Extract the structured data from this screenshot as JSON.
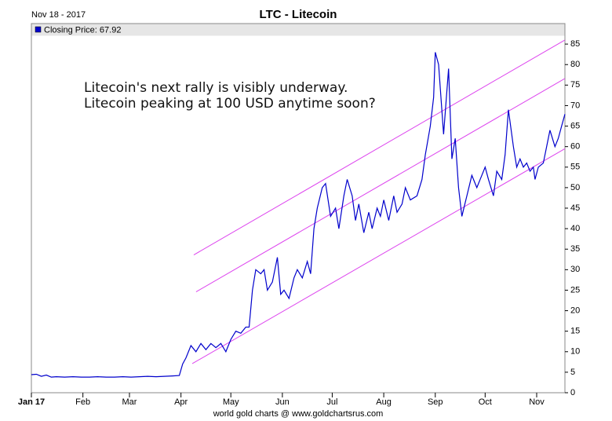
{
  "chart_data": {
    "type": "line",
    "date": "Nov 18 - 2017",
    "title": "LTC - Litecoin",
    "annotation": [
      "Litecoin's next rally is visibly underway.",
      "Litecoin peaking at 100 USD anytime soon?"
    ],
    "footer": "world gold charts @ www.goldchartsrus.com",
    "x": [
      0,
      3,
      6,
      9,
      12,
      15,
      20,
      25,
      30,
      35,
      40,
      45,
      50,
      55,
      60,
      65,
      70,
      75,
      80,
      85,
      89,
      91,
      93,
      96,
      99,
      102,
      105,
      108,
      111,
      114,
      117,
      120,
      123,
      126,
      129,
      131,
      133,
      135,
      138,
      140,
      142,
      145,
      148,
      150,
      152,
      155,
      158,
      160,
      163,
      166,
      168,
      170,
      172,
      175,
      177,
      180,
      183,
      185,
      188,
      190,
      193,
      195,
      197,
      200,
      203,
      205,
      208,
      210,
      212,
      215,
      218,
      220,
      223,
      225,
      228,
      232,
      235,
      237,
      240,
      242,
      243,
      245,
      248,
      251,
      253,
      255,
      257,
      259,
      262,
      265,
      268,
      270,
      273,
      275,
      278,
      280,
      283,
      285,
      287,
      290,
      292,
      294,
      296,
      298,
      300,
      302,
      303,
      305,
      308,
      310,
      312,
      315,
      317,
      319,
      321
    ],
    "series": [
      {
        "name": "Closing Price: 67.92",
        "color": "#0000cc",
        "values": [
          4.4,
          4.5,
          4.0,
          4.3,
          3.8,
          3.9,
          3.8,
          3.9,
          3.8,
          3.8,
          3.9,
          3.8,
          3.8,
          3.9,
          3.8,
          3.9,
          4.0,
          3.9,
          4.0,
          4.1,
          4.2,
          7.0,
          8.5,
          11.5,
          10,
          12,
          10.5,
          12,
          11,
          12,
          10,
          13,
          15,
          14.5,
          16,
          16,
          25,
          30,
          29,
          30,
          25,
          27,
          33,
          24,
          25,
          23,
          28,
          30,
          28,
          32,
          29,
          40,
          45,
          50,
          51,
          43,
          45,
          40,
          48,
          52,
          48,
          42,
          46,
          39,
          44,
          40,
          45,
          43,
          47,
          42,
          48,
          44,
          46,
          50,
          47,
          48,
          52,
          58,
          65,
          72,
          83,
          80,
          63,
          79,
          57,
          62,
          50,
          43,
          48,
          53,
          50,
          52,
          55,
          52,
          48,
          54,
          52,
          58,
          69,
          60,
          55,
          57,
          55,
          56,
          54,
          55,
          52,
          55,
          56,
          60,
          64,
          60,
          62,
          65,
          67.92
        ]
      }
    ],
    "trend_lines": {
      "color": "#dd44ee",
      "lines": [
        {
          "x": [
            97.7,
            321
          ],
          "y": [
            33.6,
            86
          ]
        },
        {
          "x": [
            99.1,
            321
          ],
          "y": [
            24.6,
            76.6
          ]
        },
        {
          "x": [
            96.8,
            321
          ],
          "y": [
            7.1,
            59.5
          ]
        }
      ]
    },
    "xlim": [
      0,
      321
    ],
    "xticks": [
      {
        "value": 0,
        "label": "Jan 17"
      },
      {
        "value": 31,
        "label": "Feb"
      },
      {
        "value": 59,
        "label": "Mar"
      },
      {
        "value": 90,
        "label": "Apr"
      },
      {
        "value": 120,
        "label": "May"
      },
      {
        "value": 151,
        "label": "Jun"
      },
      {
        "value": 181,
        "label": "Jul"
      },
      {
        "value": 212,
        "label": "Aug"
      },
      {
        "value": 243,
        "label": "Sep"
      },
      {
        "value": 273,
        "label": "Oct"
      },
      {
        "value": 304,
        "label": "Nov"
      }
    ],
    "ylim": [
      0,
      90
    ],
    "yticks": [
      0,
      5,
      10,
      15,
      20,
      25,
      30,
      35,
      40,
      45,
      50,
      55,
      60,
      65,
      70,
      75,
      80,
      85
    ],
    "grid": false
  }
}
